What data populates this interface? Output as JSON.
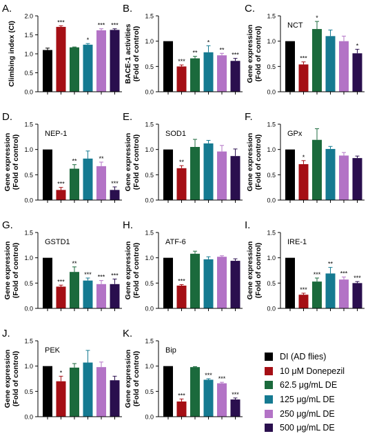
{
  "legend": {
    "entries": [
      {
        "label": "DI (AD flies)",
        "color": "#000000"
      },
      {
        "label": "10 μM Donepezil",
        "color": "#a50f15"
      },
      {
        "label": "62.5 μg/mL DE",
        "color": "#1b6a3c"
      },
      {
        "label": "125 μg/mL DE",
        "color": "#157a91"
      },
      {
        "label": "250 μg/mL DE",
        "color": "#b373c6"
      },
      {
        "label": "500 μg/mL DE",
        "color": "#2a0f4e"
      }
    ]
  },
  "chart_data": [
    {
      "type": "bar",
      "panel": "A.",
      "title": "",
      "ylabel": "Climbing  index (CI)",
      "ylim": [
        0,
        2.0
      ],
      "yticks": [
        "0.0",
        "0.5",
        "1.0",
        "1.5",
        "2.0"
      ],
      "categories": [
        "DI (AD flies)",
        "10 μM Donepezil",
        "62.5 μg/mL DE",
        "125 μg/mL DE",
        "250 μg/mL DE",
        "500 μg/mL DE"
      ],
      "values": [
        1.1,
        1.71,
        1.17,
        1.24,
        1.62,
        1.63
      ],
      "errors": [
        0.05,
        0.03,
        0.01,
        0.03,
        0.04,
        0.03
      ],
      "significance": [
        "",
        "***",
        "",
        "*",
        "***",
        "***"
      ]
    },
    {
      "type": "bar",
      "panel": "B.",
      "title": "",
      "ylabel": [
        "BACE-1 activities",
        "(Fold of control)"
      ],
      "ylim": [
        0,
        1.5
      ],
      "yticks": [
        "0.0",
        "0.5",
        "1.0",
        "1.5"
      ],
      "values": [
        1.0,
        0.5,
        0.66,
        0.78,
        0.72,
        0.61
      ],
      "errors": [
        0.0,
        0.03,
        0.04,
        0.13,
        0.04,
        0.05
      ],
      "significance": [
        "",
        "***",
        "**",
        "*",
        "**",
        "***"
      ]
    },
    {
      "type": "bar",
      "panel": "C.",
      "title": "NCT",
      "ylabel": [
        "Gene expression",
        "(Fold of control)"
      ],
      "ylim": [
        0,
        1.5
      ],
      "yticks": [
        "0.0",
        "0.5",
        "1.0",
        "1.5"
      ],
      "values": [
        1.0,
        0.54,
        1.24,
        1.1,
        1.0,
        0.76
      ],
      "errors": [
        0.0,
        0.05,
        0.15,
        0.12,
        0.1,
        0.08
      ],
      "significance": [
        "",
        "***",
        "*",
        "",
        "",
        "*"
      ]
    },
    {
      "type": "bar",
      "panel": "D.",
      "title": "NEP-1",
      "ylabel": [
        "Gene expression",
        "(Fold of control)"
      ],
      "ylim": [
        0,
        1.5
      ],
      "yticks": [
        "0.0",
        "0.5",
        "1.0",
        "1.5"
      ],
      "values": [
        1.0,
        0.2,
        0.62,
        0.82,
        0.67,
        0.2
      ],
      "errors": [
        0.0,
        0.05,
        0.08,
        0.15,
        0.08,
        0.06
      ],
      "significance": [
        "",
        "***",
        "**",
        "",
        "**",
        "***"
      ]
    },
    {
      "type": "bar",
      "panel": "E.",
      "title": "SOD1",
      "ylabel": [
        "Gene expression",
        "(Fold of control)"
      ],
      "ylim": [
        0,
        1.5
      ],
      "yticks": [
        "0.0",
        "0.5",
        "1.0",
        "1.5"
      ],
      "values": [
        1.0,
        0.63,
        1.05,
        1.12,
        0.96,
        0.87
      ],
      "errors": [
        0.0,
        0.05,
        0.15,
        0.06,
        0.12,
        0.14
      ],
      "significance": [
        "",
        "**",
        "",
        "",
        "",
        ""
      ]
    },
    {
      "type": "bar",
      "panel": "F.",
      "title": "GPx",
      "ylabel": [
        "Gene expression",
        "(Fold of control)"
      ],
      "ylim": [
        0,
        1.5
      ],
      "yticks": [
        "0.0",
        "0.5",
        "1.0",
        "1.5"
      ],
      "values": [
        1.0,
        0.71,
        1.19,
        1.01,
        0.88,
        0.83
      ],
      "errors": [
        0.0,
        0.07,
        0.22,
        0.05,
        0.06,
        0.04
      ],
      "significance": [
        "",
        "*",
        "",
        "",
        "",
        ""
      ]
    },
    {
      "type": "bar",
      "panel": "G.",
      "title": "GSTD1",
      "ylabel": [
        "Gene expression",
        "(Fold of control)"
      ],
      "ylim": [
        0,
        1.5
      ],
      "yticks": [
        "0.0",
        "0.5",
        "1.0",
        "1.5"
      ],
      "values": [
        1.0,
        0.43,
        0.72,
        0.55,
        0.48,
        0.48
      ],
      "errors": [
        0.0,
        0.03,
        0.1,
        0.05,
        0.07,
        0.1
      ],
      "significance": [
        "",
        "***",
        "**",
        "***",
        "***",
        "***"
      ]
    },
    {
      "type": "bar",
      "panel": "H.",
      "title": "ATF-6",
      "ylabel": [
        "Gene expression",
        "(Fold of control)"
      ],
      "ylim": [
        0,
        1.5
      ],
      "yticks": [
        "0.0",
        "0.5",
        "1.0",
        "1.5"
      ],
      "values": [
        1.0,
        0.45,
        1.08,
        0.97,
        1.02,
        0.94
      ],
      "errors": [
        0.0,
        0.02,
        0.05,
        0.05,
        0.02,
        0.04
      ],
      "significance": [
        "",
        "***",
        "",
        "",
        "",
        ""
      ]
    },
    {
      "type": "bar",
      "panel": "I.",
      "title": "IRE-1",
      "ylabel": [
        "Gene expression",
        "(Fold of control)"
      ],
      "ylim": [
        0,
        1.5
      ],
      "yticks": [
        "0.0",
        "0.5",
        "1.0",
        "1.5"
      ],
      "values": [
        1.0,
        0.27,
        0.53,
        0.69,
        0.57,
        0.5
      ],
      "errors": [
        0.0,
        0.03,
        0.07,
        0.12,
        0.05,
        0.03
      ],
      "significance": [
        "",
        "***",
        "***",
        "**",
        "***",
        "***"
      ]
    },
    {
      "type": "bar",
      "panel": "J.",
      "title": "PEK",
      "ylabel": [
        "Gene expression",
        "(Fold of control)"
      ],
      "ylim": [
        0,
        1.5
      ],
      "yticks": [
        "0.0",
        "0.5",
        "1.0",
        "1.5"
      ],
      "values": [
        1.0,
        0.7,
        0.97,
        1.07,
        0.98,
        0.72
      ],
      "errors": [
        0.0,
        0.1,
        0.08,
        0.24,
        0.1,
        0.08
      ],
      "significance": [
        "",
        "*",
        "",
        "",
        "",
        ""
      ]
    },
    {
      "type": "bar",
      "panel": "K.",
      "title": "Bip",
      "ylabel": [
        "Gene expression",
        "(Fold of control)"
      ],
      "ylim": [
        0,
        1.5
      ],
      "yticks": [
        "0.0",
        "0.5",
        "1.0",
        "1.5"
      ],
      "values": [
        1.0,
        0.3,
        0.98,
        0.73,
        0.66,
        0.34
      ],
      "errors": [
        0.0,
        0.05,
        0.01,
        0.02,
        0.02,
        0.03
      ],
      "significance": [
        "",
        "***",
        "",
        "***",
        "***",
        "***"
      ]
    }
  ]
}
